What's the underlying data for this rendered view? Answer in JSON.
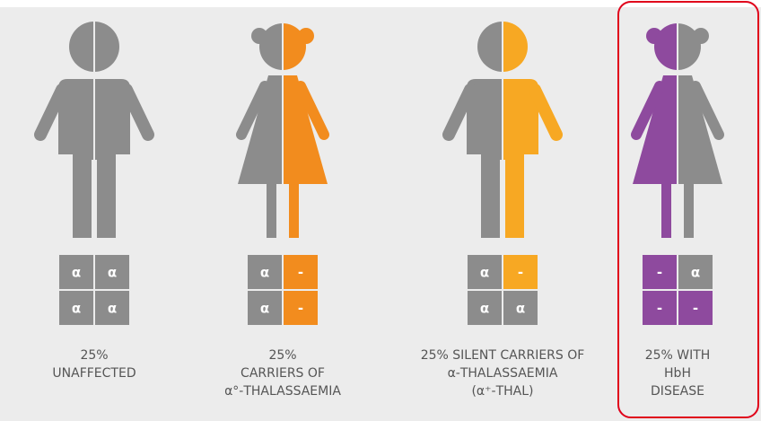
{
  "figures": [
    {
      "caption": [
        "25%",
        "UNAFFECTED"
      ],
      "genes": [
        [
          "α",
          "α"
        ],
        [
          "α",
          "α"
        ]
      ]
    },
    {
      "caption": [
        "25%",
        "CARRIERS OF",
        "α°-THALASSAEMIA"
      ],
      "genes": [
        [
          "α",
          "-"
        ],
        [
          "α",
          "-"
        ]
      ]
    },
    {
      "caption": [
        "25% SILENT CARRIERS OF",
        "α-THALASSAEMIA",
        "(α⁺-THAL)"
      ],
      "genes": [
        [
          "α",
          "-"
        ],
        [
          "α",
          "α"
        ]
      ]
    },
    {
      "caption": [
        "25% WITH",
        "HbH",
        "DISEASE"
      ],
      "genes": [
        [
          "-",
          "α"
        ],
        [
          "-",
          "-"
        ]
      ]
    }
  ]
}
